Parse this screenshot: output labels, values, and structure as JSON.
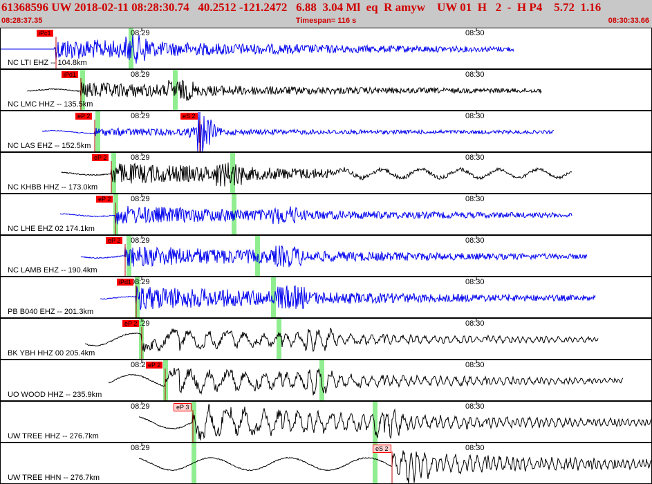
{
  "header": {
    "title": "61368596 UW 2018-02-11 08:28:30.74   40.2512 -121.2472   6.88  3.04 Ml  eq  R amyw    UW 01  H   2  -  H P4    5.72  1.16",
    "start_time": "08:28:37.35",
    "timespan": "Timespan= 116 s",
    "end_time": "08:30:33.66"
  },
  "colors": {
    "header_bg": "#c8c8c8",
    "header_text": "#d00000",
    "pick": "#ff0000",
    "window": "#90ee90"
  },
  "time_marks": [
    "08:29",
    "08:30"
  ],
  "channels": [
    {
      "label": "NC LTI EHZ -- 104.8km",
      "color": "blue",
      "pick": "iPc1",
      "pick_hollow": false
    },
    {
      "label": "NC LMC HHZ -- 135.5km",
      "color": "black",
      "pick": "iPd1",
      "pick_hollow": false
    },
    {
      "label": "NC LAS EHZ -- 152.5km",
      "color": "blue",
      "pick": "eP 2",
      "pick2": "eS 2",
      "pick_hollow": false
    },
    {
      "label": "NC KHBB HHZ -- 173.0km",
      "color": "black",
      "pick": "eP 2",
      "pick_hollow": false
    },
    {
      "label": "NC LHE EHZ 02 174.1km",
      "color": "blue",
      "pick": "eP 2",
      "pick_hollow": false
    },
    {
      "label": "NC LAMB EHZ -- 190.4km",
      "color": "blue",
      "pick": "eP 2",
      "pick_hollow": false
    },
    {
      "label": "PB B040 EHZ -- 201.3km",
      "color": "blue",
      "pick": "iPd1",
      "pick_hollow": false
    },
    {
      "label": "BK YBH HHZ 00 205.4km",
      "color": "black",
      "pick": "eP 2",
      "pick_hollow": false
    },
    {
      "label": "UO WOOD HHZ -- 235.9km",
      "color": "black",
      "pick": "eP 2",
      "pick_hollow": false
    },
    {
      "label": "UW TREE HHZ -- 276.7km",
      "color": "black",
      "pick": "eP 3",
      "pick_hollow": true
    },
    {
      "label": "UW TREE HHN -- 276.7km",
      "color": "black",
      "pick": "eS 2",
      "pick_hollow": true
    }
  ]
}
